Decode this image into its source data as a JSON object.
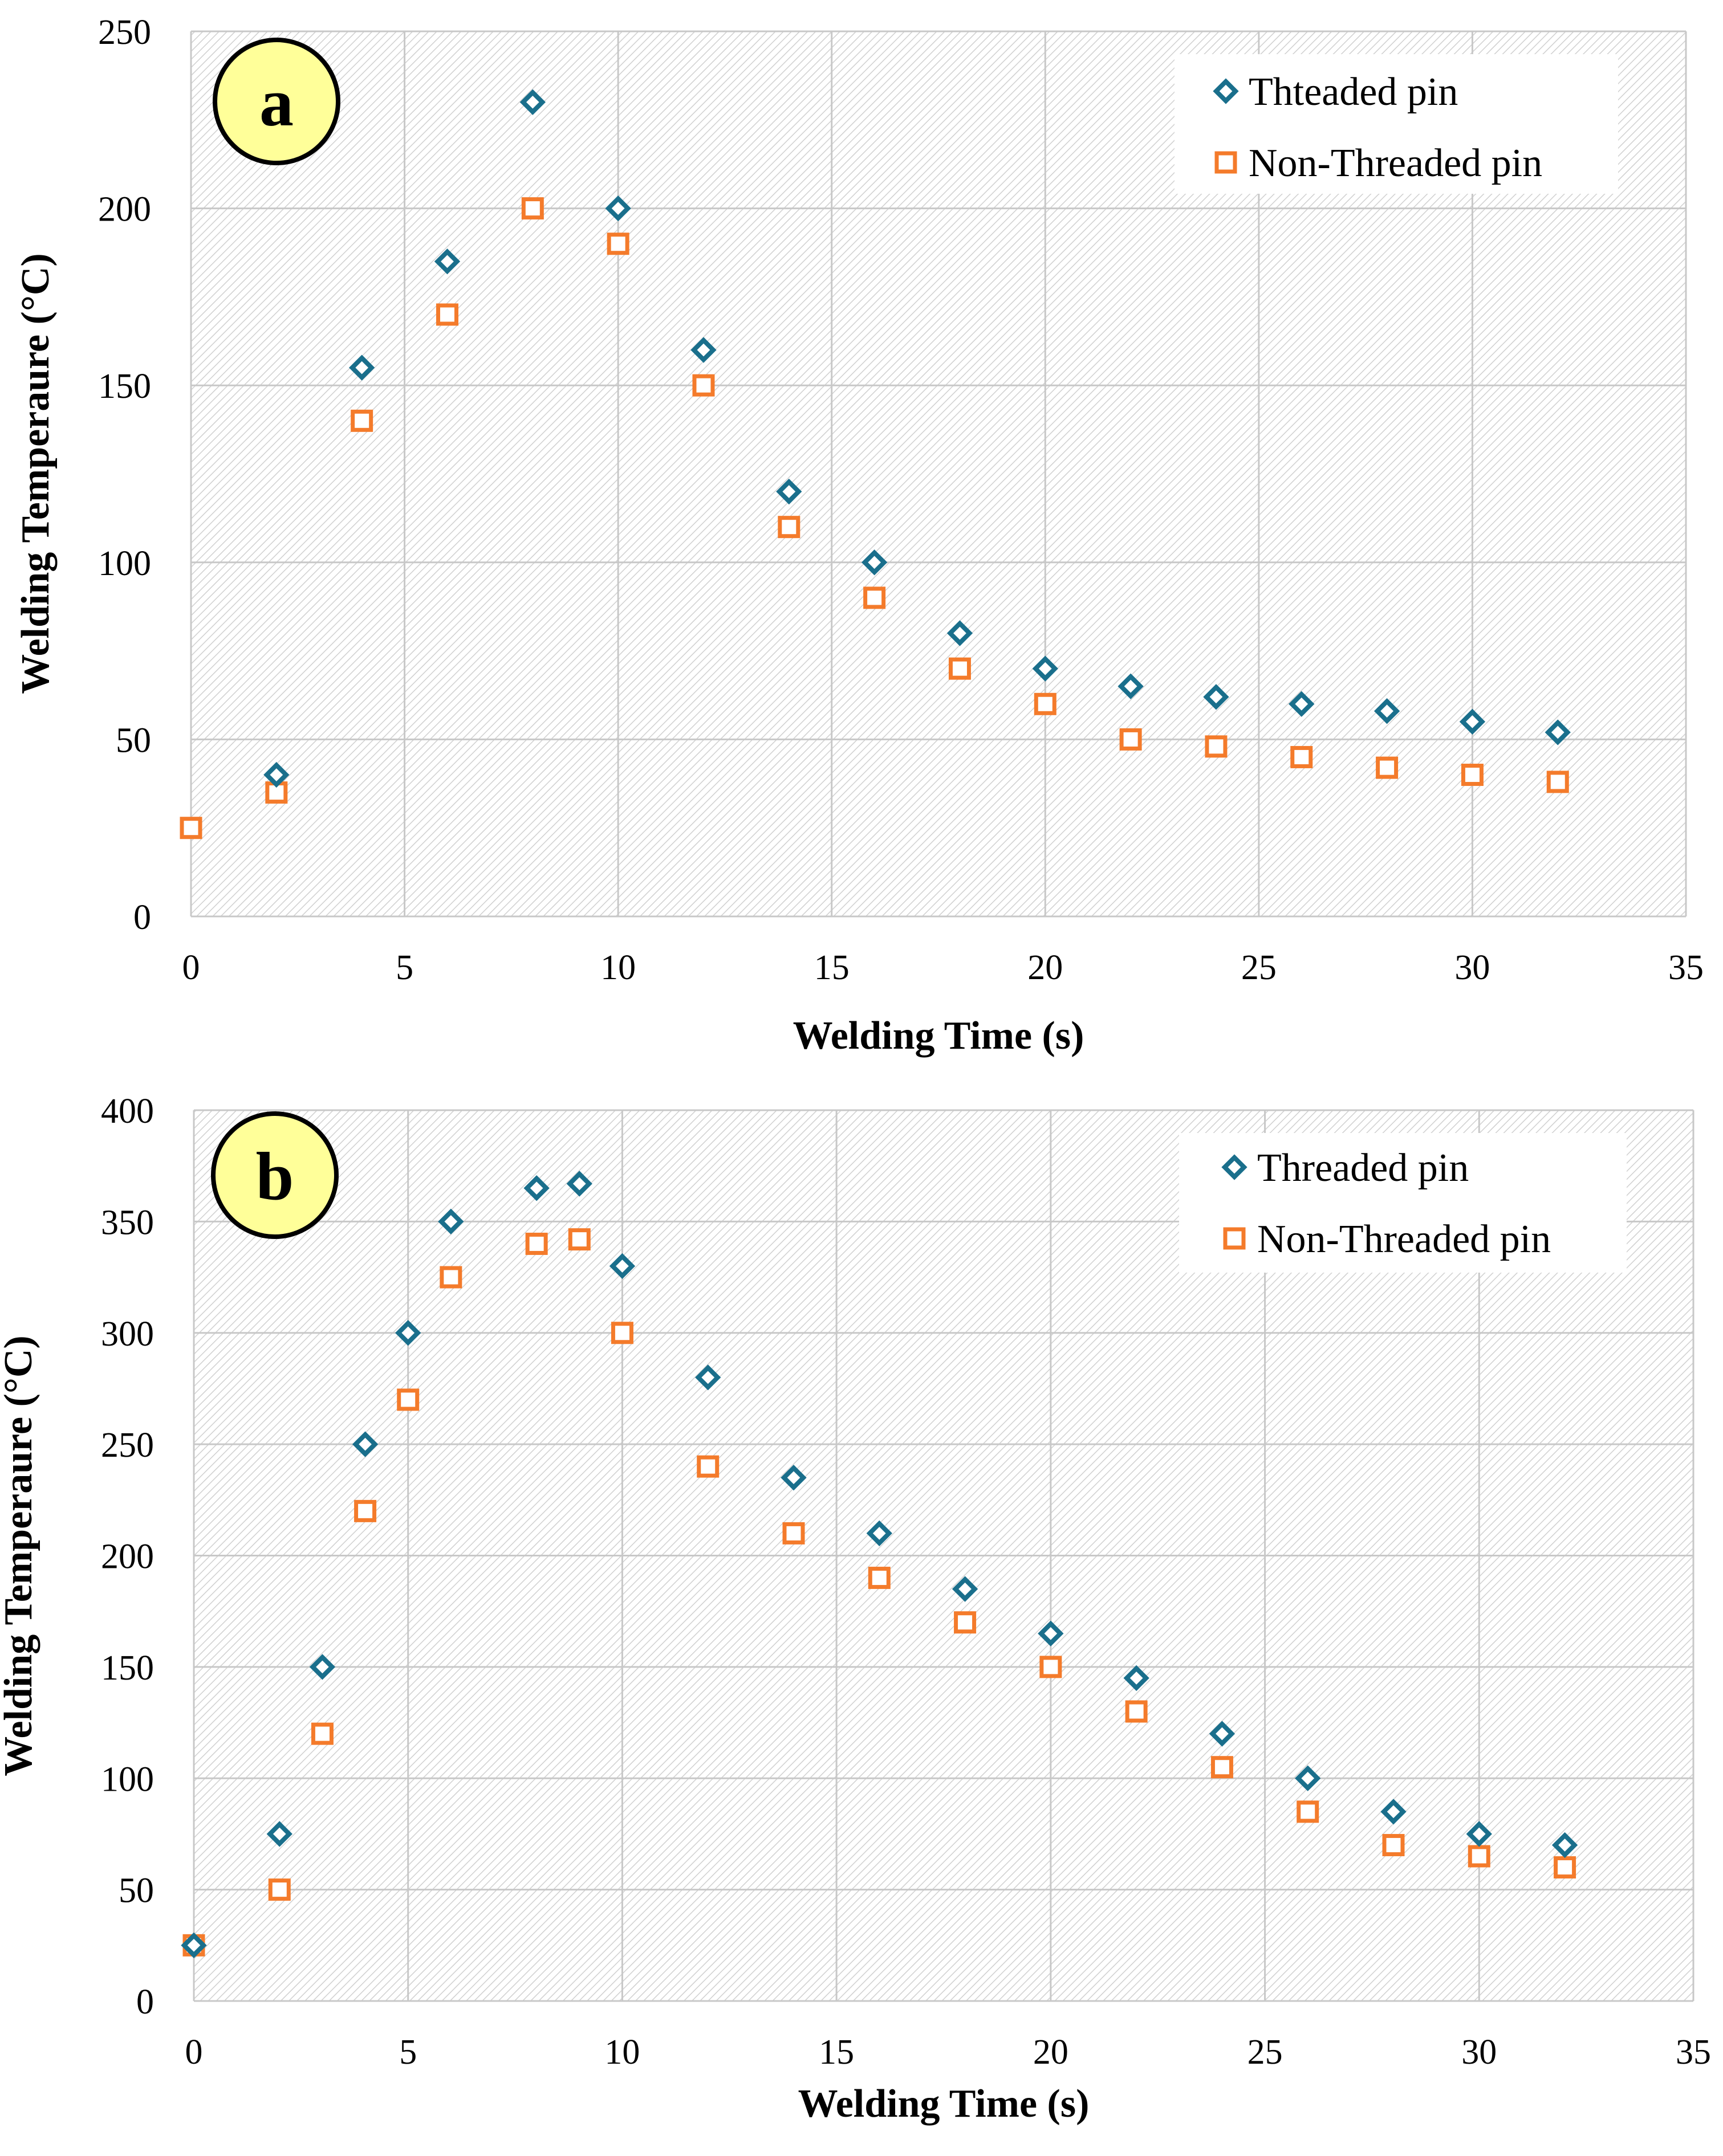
{
  "chart_data": [
    {
      "type": "scatter",
      "panel_label": "a",
      "xlabel": "Welding Time (s)",
      "ylabel": "Welding Temperaure (°C)",
      "xlim": [
        0,
        35
      ],
      "ylim": [
        0,
        250
      ],
      "x_ticks": [
        "0",
        "5",
        "10",
        "15",
        "20",
        "25",
        "30",
        "35"
      ],
      "y_ticks": [
        "0",
        "50",
        "100",
        "150",
        "200",
        "250"
      ],
      "grid": true,
      "legend_position": "top-right",
      "series": [
        {
          "name": "Thteaded pin",
          "marker": "diamond",
          "color": "#1a6f8c",
          "x": [
            2,
            4,
            6,
            8,
            10,
            12,
            14,
            16,
            18,
            20,
            22,
            24,
            26,
            28,
            30,
            32
          ],
          "y": [
            40,
            155,
            185,
            230,
            200,
            160,
            120,
            100,
            80,
            70,
            65,
            62,
            60,
            58,
            55,
            52
          ]
        },
        {
          "name": "Non-Threaded pin",
          "marker": "square",
          "color": "#f47b2b",
          "x": [
            0,
            2,
            4,
            6,
            8,
            10,
            12,
            14,
            16,
            18,
            20,
            22,
            24,
            26,
            28,
            30,
            32
          ],
          "y": [
            25,
            35,
            140,
            170,
            200,
            190,
            150,
            110,
            90,
            70,
            60,
            50,
            48,
            45,
            42,
            40,
            38
          ]
        }
      ]
    },
    {
      "type": "scatter",
      "panel_label": "b",
      "xlabel": "Welding Time (s)",
      "ylabel": "Welding Temperaure (°C)",
      "xlim": [
        0,
        35
      ],
      "ylim": [
        0,
        400
      ],
      "x_ticks": [
        "0",
        "5",
        "10",
        "15",
        "20",
        "25",
        "30",
        "35"
      ],
      "y_ticks": [
        "0",
        "50",
        "100",
        "150",
        "200",
        "250",
        "300",
        "350",
        "400"
      ],
      "grid": true,
      "legend_position": "top-right",
      "series": [
        {
          "name": "Threaded pin",
          "marker": "diamond",
          "color": "#1a6f8c",
          "x": [
            0,
            2,
            3,
            4,
            5,
            6,
            8,
            9,
            10,
            12,
            14,
            16,
            18,
            20,
            22,
            24,
            26,
            28,
            30,
            32
          ],
          "y": [
            25,
            75,
            150,
            250,
            300,
            350,
            365,
            367,
            330,
            280,
            235,
            210,
            185,
            165,
            145,
            120,
            100,
            85,
            75,
            70
          ]
        },
        {
          "name": "Non-Threaded pin",
          "marker": "square",
          "color": "#f47b2b",
          "x": [
            0,
            2,
            3,
            4,
            5,
            6,
            8,
            9,
            10,
            12,
            14,
            16,
            18,
            20,
            22,
            24,
            26,
            28,
            30,
            32
          ],
          "y": [
            25,
            50,
            120,
            220,
            270,
            325,
            340,
            342,
            300,
            240,
            210,
            190,
            170,
            150,
            130,
            105,
            85,
            70,
            65,
            60
          ]
        }
      ]
    }
  ],
  "colors": {
    "grid": "#c8c8c8",
    "plot_hatch": "#d9d9d9",
    "badge_fill": "#ffff99",
    "badge_stroke": "#000000"
  }
}
